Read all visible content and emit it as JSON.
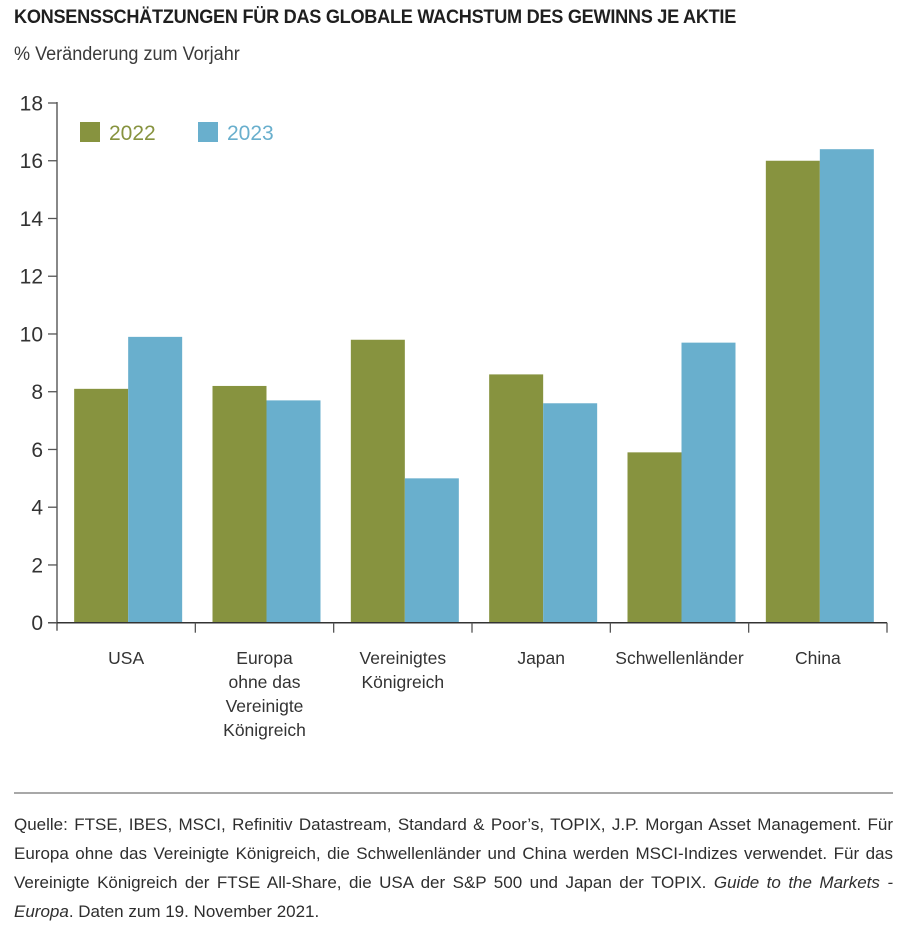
{
  "chart_data": {
    "type": "bar",
    "title": "KONSENSSCHÄTZUNGEN FÜR DAS GLOBALE WACHSTUM DES GEWINNS JE AKTIE",
    "subtitle": "% Veränderung zum Vorjahr",
    "xlabel": "",
    "ylabel": "% Veränderung zum Vorjahr",
    "categories": [
      [
        "USA"
      ],
      [
        "Europa",
        "ohne das",
        "Vereinigte",
        "Königreich"
      ],
      [
        "Vereinigtes",
        "Königreich"
      ],
      [
        "Japan"
      ],
      [
        "Schwellenländer"
      ],
      [
        "China"
      ]
    ],
    "category_names": [
      "USA",
      "Europa ohne das Vereinigte Königreich",
      "Vereinigtes Königreich",
      "Japan",
      "Schwellenländer",
      "China"
    ],
    "series": [
      {
        "name": "2022",
        "color": "#87933f",
        "values": [
          8.1,
          8.2,
          9.8,
          8.6,
          5.9,
          16.0
        ]
      },
      {
        "name": "2023",
        "color": "#69afcd",
        "values": [
          9.9,
          7.7,
          5.0,
          7.6,
          9.7,
          16.4
        ]
      }
    ],
    "ylim": [
      0,
      18
    ],
    "yticks": [
      0,
      2,
      4,
      6,
      8,
      10,
      12,
      14,
      16,
      18
    ],
    "grid": false,
    "legend_position": "top-left"
  },
  "footnote": {
    "part1": "Quelle: FTSE, IBES, MSCI, Refinitiv Datastream, Standard & Poor’s, TOPIX, J.P. Morgan Asset Management. Für Europa ohne das Vereinigte Königreich, die Schwellenländer und China werden MSCI-Indizes verwendet. Für das Vereinigte Königreich der FTSE All-Share, die USA der S&P 500 und Japan der TOPIX. ",
    "italic": "Guide to the Markets - Europa",
    "part2": ". Daten zum 19. November 2021."
  }
}
